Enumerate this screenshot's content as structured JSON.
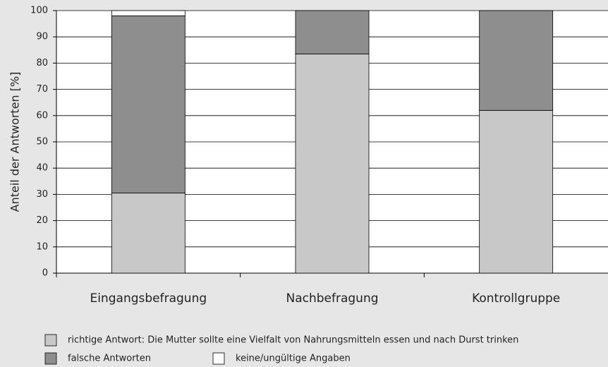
{
  "chart_data": {
    "type": "stacked_bar",
    "ylabel": "Anteil der Antworten [%]",
    "categories": [
      "Eingangsbefragung",
      "Nachbefragung",
      "Kontrollgruppe"
    ],
    "series": [
      {
        "name": "richtige Antwort: Die Mutter sollte eine Vielfalt von Nahrungsmitteln essen und nach Durst trinken",
        "color": "#c8c8c8",
        "values": [
          30.5,
          83.5,
          62
        ]
      },
      {
        "name": "falsche Antworten",
        "color": "#8e8e8e",
        "values": [
          67.5,
          16.5,
          38
        ]
      },
      {
        "name": "keine/ungültige Angaben",
        "color": "#ffffff",
        "values": [
          2,
          0,
          0
        ]
      }
    ],
    "ylim": [
      0,
      100
    ],
    "yticks": [
      0,
      10,
      20,
      30,
      40,
      50,
      60,
      70,
      80,
      90,
      100
    ],
    "grid": true
  }
}
